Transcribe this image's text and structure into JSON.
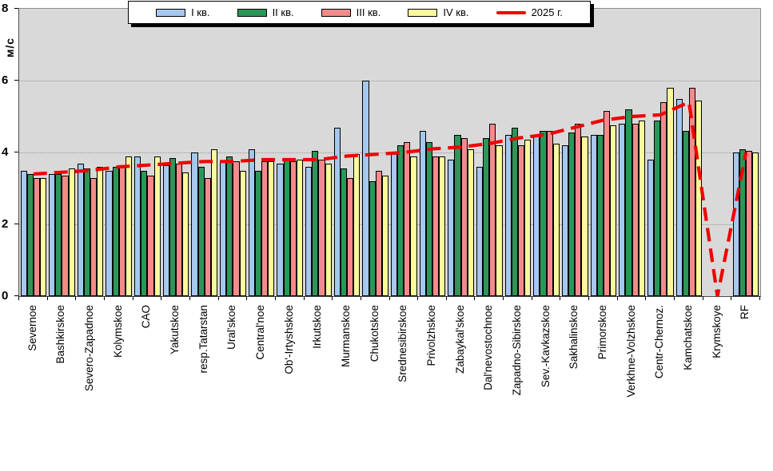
{
  "chart_data": {
    "type": "bar",
    "title": "",
    "ylabel": "м/с",
    "ylim": [
      0,
      8
    ],
    "yticks": [
      0,
      2,
      4,
      6,
      8
    ],
    "grid": "horizontal dotted gridlines at 2, 4, 6",
    "legend_position": "top",
    "plot_bg_color": "#d9d9d9",
    "categories": [
      "Severnoe",
      "Bashkirskoe",
      "Severo-Zapadnoe",
      "Kolymskoe",
      "CAO",
      "Yakutskoe",
      "resp.Tatarstan",
      "Ural'skoe",
      "Central'noe",
      "Ob'-Irtyshskoe",
      "Irkutskoe",
      "Murmanskoe",
      "Chukotskoe",
      "Srednesibirskoe",
      "Privolzhskoe",
      "Zabaykal'skoe",
      "Dal'nevostochnoe",
      "Zapadno-Sibirskoe",
      "Sev.-Kavkazskoe",
      "Sakhalinskoe",
      "Primorskoe",
      "Verkhne-Volzhskoe",
      "Centr-Chernoz.",
      "Kamchatskoe",
      "Krymskoye",
      "RF"
    ],
    "series": [
      {
        "name": "I кв.",
        "type": "bar",
        "color": "#a4c8ee",
        "values": [
          3.5,
          3.4,
          3.7,
          3.5,
          3.9,
          3.65,
          4.0,
          3.75,
          4.1,
          3.7,
          3.6,
          4.7,
          6.0,
          4.0,
          4.6,
          3.8,
          3.6,
          4.5,
          4.5,
          4.2,
          4.5,
          4.8,
          3.8,
          5.5,
          0,
          4.0
        ]
      },
      {
        "name": "II кв.",
        "type": "bar",
        "color": "#2c9658",
        "values": [
          3.4,
          3.4,
          3.55,
          3.6,
          3.5,
          3.85,
          3.6,
          3.9,
          3.5,
          3.85,
          4.05,
          3.55,
          3.2,
          4.2,
          4.3,
          4.5,
          4.4,
          4.7,
          4.6,
          4.55,
          4.5,
          5.2,
          4.9,
          4.6,
          0,
          4.1
        ]
      },
      {
        "name": "III кв.",
        "type": "bar",
        "color": "#f48a8a",
        "values": [
          3.3,
          3.35,
          3.3,
          3.6,
          3.35,
          3.7,
          3.3,
          3.75,
          3.75,
          3.75,
          3.8,
          3.3,
          3.5,
          4.3,
          3.9,
          4.4,
          4.8,
          4.2,
          4.6,
          4.8,
          5.15,
          4.8,
          5.4,
          5.8,
          0,
          4.05
        ]
      },
      {
        "name": "IV кв.",
        "type": "bar",
        "color": "#fafa9c",
        "values": [
          3.3,
          3.55,
          3.6,
          3.9,
          3.9,
          3.45,
          4.1,
          3.5,
          3.75,
          3.8,
          3.7,
          3.95,
          3.35,
          3.9,
          3.9,
          4.1,
          4.2,
          4.35,
          4.25,
          4.45,
          4.75,
          4.9,
          5.8,
          5.45,
          0,
          4.0
        ]
      },
      {
        "name": "2025 г.",
        "type": "line",
        "color": "#f00000",
        "dashed": true,
        "values": [
          3.4,
          3.45,
          3.5,
          3.6,
          3.65,
          3.7,
          3.75,
          3.75,
          3.8,
          3.8,
          3.8,
          3.9,
          3.95,
          4.0,
          4.1,
          4.15,
          4.25,
          4.4,
          4.5,
          4.7,
          4.9,
          5.0,
          5.05,
          5.4,
          0,
          4.0
        ]
      }
    ]
  }
}
